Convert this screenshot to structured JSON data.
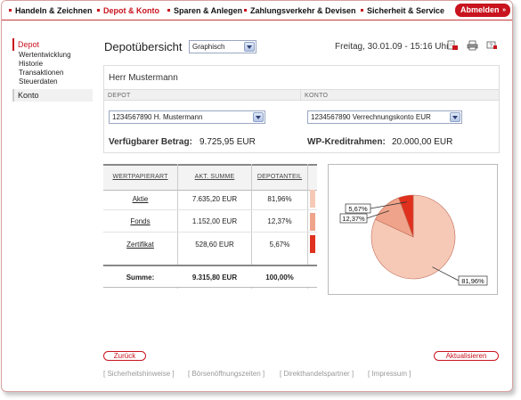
{
  "nav": {
    "items": [
      {
        "label": "Handeln & Zeichnen",
        "active": false
      },
      {
        "label": "Depot & Konto",
        "active": true
      },
      {
        "label": "Sparen & Anlegen",
        "active": false
      },
      {
        "label": "Zahlungsverkehr & Devisen",
        "active": false
      },
      {
        "label": "Sicherheit & Service",
        "active": false
      }
    ],
    "logout_label": "Abmelden",
    "logout_arrow": "»"
  },
  "sidebar": {
    "depot": "Depot",
    "subs": [
      "Wertentwicklung",
      "Historie",
      "Transaktionen",
      "Steuerdaten"
    ],
    "konto": "Konto"
  },
  "header": {
    "title": "Depotübersicht",
    "view_select": "Graphisch",
    "datetime": "Freitag, 30.01.09 - 15:16 Uhr",
    "icons": [
      "pdf-icon",
      "print-icon",
      "help-icon"
    ]
  },
  "account": {
    "holder": "Herr Mustermann",
    "depot_header": "DEPOT",
    "konto_header": "KONTO",
    "depot_select": "1234567890 H. Mustermann",
    "konto_select": "1234567890  Verrechnungskonto EUR",
    "available_label": "Verfügbarer Betrag:",
    "available_value": "9.725,95 EUR",
    "credit_label": "WP-Kreditrahmen:",
    "credit_value": "20.000,00 EUR"
  },
  "table": {
    "headers": [
      "WERTPAPIERART",
      "AKT. SUMME",
      "DEPOTANTEIL"
    ],
    "rows": [
      {
        "type": "Aktie",
        "sum": "7.635,20 EUR",
        "share": "81,96%",
        "color": "#f6c9b7"
      },
      {
        "type": "Fonds",
        "sum": "1.152,00 EUR",
        "share": "12,37%",
        "color": "#eea38a"
      },
      {
        "type": "Zertifikat",
        "sum": "528,60 EUR",
        "share": "5,67%",
        "color": "#e0301e"
      }
    ],
    "sum_label": "Summe:",
    "sum_value": "9.315,80 EUR",
    "sum_share": "100,00%"
  },
  "chart_data": {
    "type": "pie",
    "labels": [
      "Aktie",
      "Fonds",
      "Zertifikat"
    ],
    "values": [
      81.96,
      12.37,
      5.67
    ],
    "data_labels": [
      "81,96%",
      "12,37%",
      "5,67%"
    ],
    "colors": [
      "#f6c9b7",
      "#eea38a",
      "#e0301e"
    ]
  },
  "buttons": {
    "back": "Zurück",
    "refresh": "Aktualisieren"
  },
  "footer": [
    "[ Sicherheitshinweise ]",
    "[ Börsenöffnungszeiten ]",
    "[ Direkthandelspartner ]",
    "[ Impressum ]"
  ]
}
